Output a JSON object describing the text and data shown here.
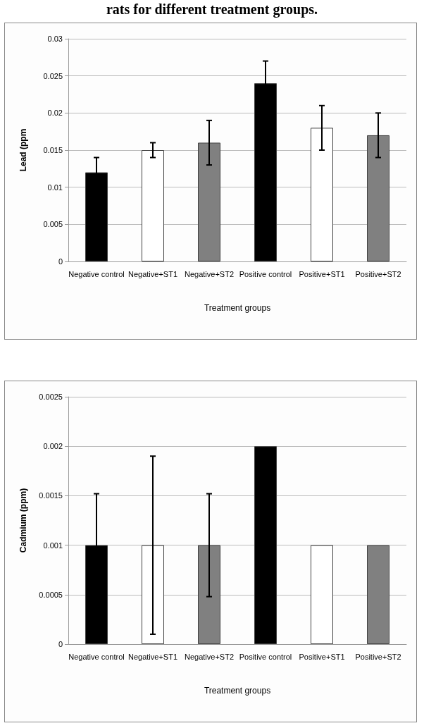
{
  "chart_data": [
    {
      "type": "bar",
      "title": "rats for different treatment groups.",
      "categories": [
        "Negative control",
        "Negative+ST1",
        "Negative+ST2",
        "Positive control",
        "Positive+ST1",
        "Positive+ST2"
      ],
      "values": [
        0.012,
        0.015,
        0.016,
        0.024,
        0.018,
        0.017
      ],
      "errors": [
        0.002,
        0.001,
        0.003,
        0.003,
        0.003,
        0.003
      ],
      "colors": [
        "#000000",
        "#ffffff",
        "#808080",
        "#000000",
        "#ffffff",
        "#808080"
      ],
      "ylabel": "Lead (ppm",
      "xlabel": "Treatment groups",
      "ylim": [
        0,
        0.03
      ],
      "yticks": [
        0,
        0.005,
        0.01,
        0.015,
        0.02,
        0.025,
        0.03
      ],
      "grid": "y"
    },
    {
      "type": "bar",
      "categories": [
        "Negative control",
        "Negative+ST1",
        "Negative+ST2",
        "Positive control",
        "Positive+ST1",
        "Positive+ST2"
      ],
      "values": [
        0.001,
        0.001,
        0.001,
        0.002,
        0.001,
        0.001
      ],
      "errors": [
        0.00052,
        0.0009,
        0.00052,
        null,
        null,
        null
      ],
      "colors": [
        "#000000",
        "#ffffff",
        "#808080",
        "#000000",
        "#ffffff",
        "#808080"
      ],
      "ylabel": "Cadmium (ppm)",
      "xlabel": "Treatment groups",
      "ylim": [
        0,
        0.0025
      ],
      "yticks": [
        0,
        0.0005,
        0.001,
        0.0015,
        0.002,
        0.0025
      ],
      "grid": "y"
    }
  ]
}
